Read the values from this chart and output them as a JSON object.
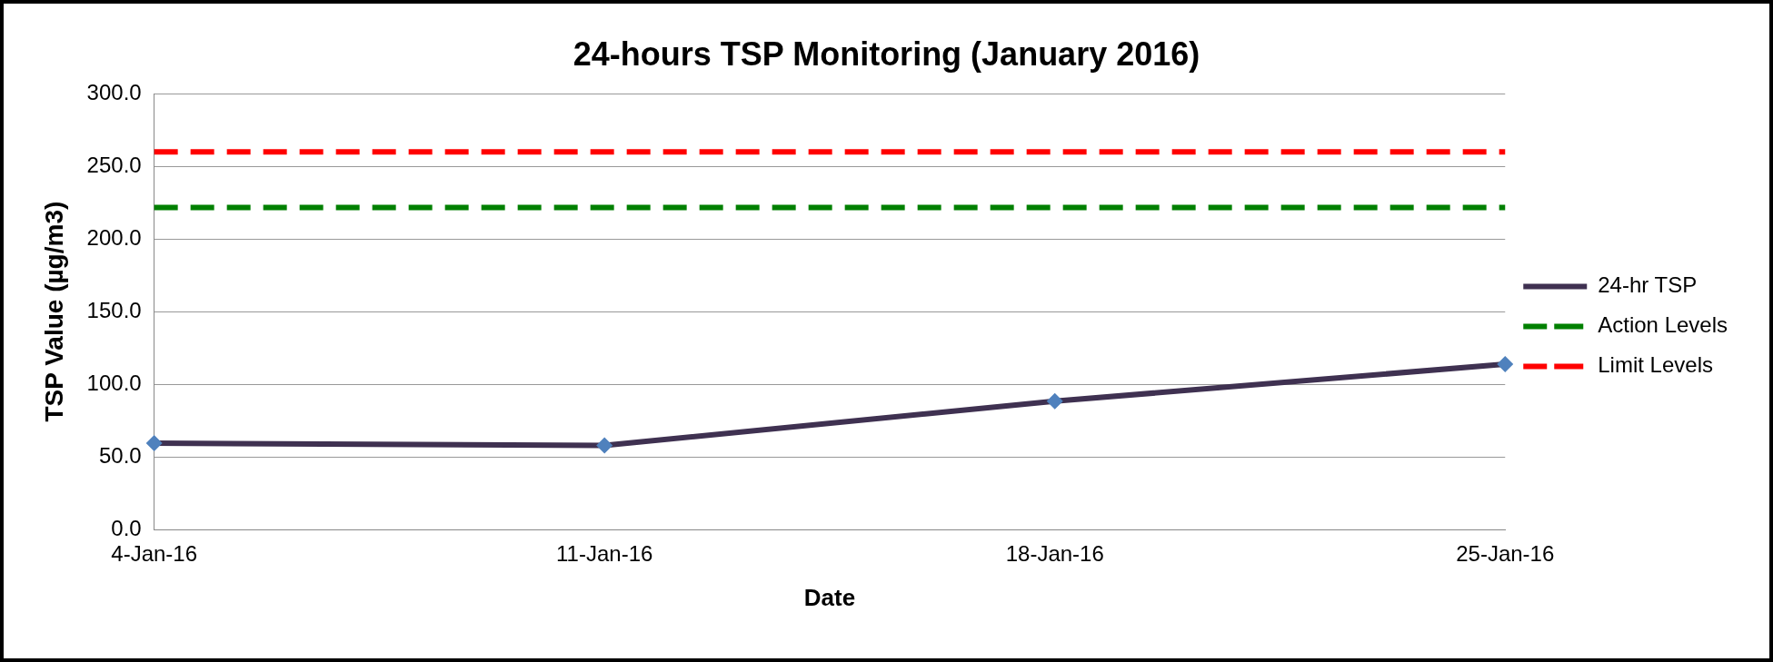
{
  "chart_data": {
    "type": "line",
    "title": "24-hours TSP Monitoring (January 2016)",
    "xlabel": "Date",
    "ylabel": "TSP Value (µg/m3)",
    "categories": [
      "4-Jan-16",
      "11-Jan-16",
      "18-Jan-16",
      "25-Jan-16"
    ],
    "series": [
      {
        "name": "24-hr TSP",
        "color": "#3f3151",
        "values": [
          59.4,
          57.9,
          88.3,
          113.8
        ],
        "marker": "diamond",
        "line_style": "solid"
      },
      {
        "name": "Action Levels",
        "color": "#008000",
        "values": [
          221.7,
          221.7,
          221.7,
          221.7
        ],
        "marker": "none",
        "line_style": "dashed"
      },
      {
        "name": "Limit Levels",
        "color": "#ff0000",
        "values": [
          260,
          260,
          260,
          260
        ],
        "marker": "none",
        "line_style": "dashed"
      }
    ],
    "ylim": [
      0,
      300
    ],
    "yticks": [
      {
        "value": 0,
        "label": "0.0"
      },
      {
        "value": 50,
        "label": "50.0"
      },
      {
        "value": 100,
        "label": "100.0"
      },
      {
        "value": 150,
        "label": "150.0"
      },
      {
        "value": 200,
        "label": "200.0"
      },
      {
        "value": 250,
        "label": "250.0"
      },
      {
        "value": 300,
        "label": "300.0"
      }
    ],
    "grid": "y",
    "legend": "right"
  }
}
